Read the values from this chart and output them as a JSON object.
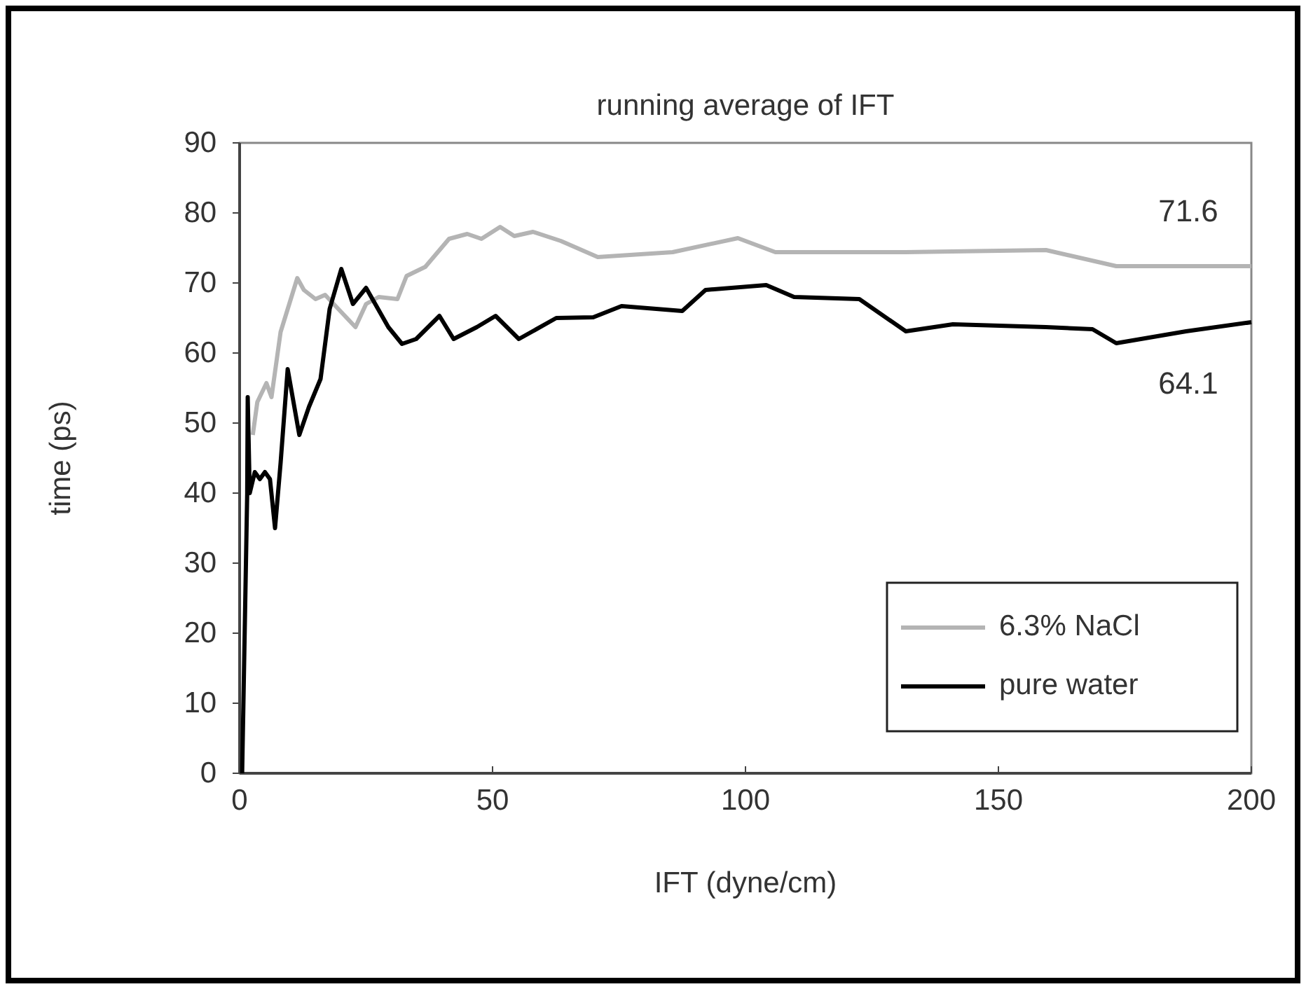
{
  "chart_data": {
    "type": "line",
    "title": "running average of IFT",
    "xlabel": "IFT (dyne/cm)",
    "ylabel": "time (ps)",
    "xlim": [
      0,
      200
    ],
    "xticks": [
      0,
      50,
      100,
      150,
      200
    ],
    "ylim": [
      0,
      90
    ],
    "yticks": [
      0,
      10,
      20,
      30,
      40,
      50,
      60,
      70,
      80,
      90
    ],
    "grid": false,
    "legend": "bottom right",
    "marker": "none",
    "line_style": "solid",
    "series": [
      {
        "name": "6.3% NaCl",
        "color": "#b4b4b4",
        "x": [
          2.6,
          3.5,
          5.3,
          6.3,
          8.1,
          11.4,
          12.7,
          15,
          16.9,
          19.5,
          22.9,
          25,
          27.5,
          31.2,
          33,
          36.7,
          41.4,
          45,
          47.8,
          51.5,
          54.3,
          58,
          63.5,
          70.8,
          85.6,
          98.5,
          105.9,
          131.7,
          159.4,
          173.3,
          200
        ],
        "values": [
          48.3,
          53,
          55.7,
          53.7,
          63,
          70.7,
          69,
          67.7,
          68.3,
          66.3,
          63.7,
          67,
          68,
          67.7,
          71,
          72.3,
          76.3,
          77,
          76.3,
          78,
          76.7,
          77.3,
          76,
          73.7,
          74.4,
          76.4,
          74.4,
          74.4,
          74.7,
          72.4,
          72.4
        ]
      },
      {
        "name": "pure water",
        "color": "#000000",
        "x": [
          0.5,
          1,
          1.5,
          1.6,
          2,
          3,
          4,
          5,
          6,
          7,
          8.1,
          9.5,
          11.8,
          13.7,
          16,
          17.8,
          20.1,
          22.4,
          25,
          29.4,
          32.1,
          34.9,
          39.5,
          42.3,
          46.9,
          50.6,
          55.2,
          62.6,
          69.9,
          75.5,
          87.5,
          92.1,
          104.1,
          109.6,
          122.5,
          131.7,
          141,
          159.4,
          168.6,
          173.3,
          187.1,
          200
        ],
        "values": [
          0,
          20,
          40,
          53.7,
          40,
          43,
          42,
          43,
          42,
          35,
          44.3,
          57.7,
          48.3,
          52.3,
          56.3,
          66.3,
          72,
          67,
          69.3,
          63.7,
          61.3,
          62,
          65.3,
          62,
          63.7,
          65.3,
          62,
          65,
          65.1,
          66.7,
          66,
          69,
          69.7,
          68,
          67.7,
          63.1,
          64.1,
          63.7,
          63.4,
          61.4,
          63.1,
          64.4
        ]
      }
    ],
    "annotations": [
      "71.6",
      "64.1"
    ]
  }
}
